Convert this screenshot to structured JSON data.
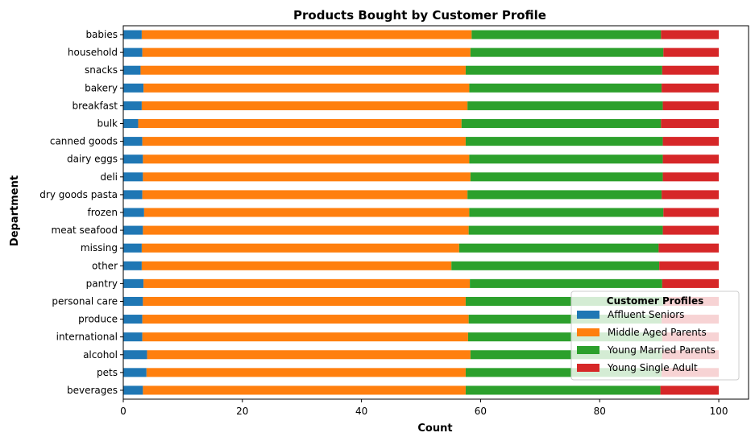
{
  "chart_data": {
    "type": "bar",
    "orientation": "horizontal",
    "stacked": true,
    "title": "Products Bought by Customer Profile",
    "xlabel": "Count",
    "ylabel": "Department",
    "xlim": [
      0,
      105
    ],
    "xticks": [
      0,
      20,
      40,
      60,
      80,
      100
    ],
    "grid": false,
    "legend": {
      "title": "Customer Profiles",
      "placement": "bottom-right"
    },
    "categories": [
      "babies",
      "household",
      "snacks",
      "bakery",
      "breakfast",
      "bulk",
      "canned goods",
      "dairy eggs",
      "deli",
      "dry goods pasta",
      "frozen",
      "meat seafood",
      "missing",
      "other",
      "pantry",
      "personal care",
      "produce",
      "international",
      "alcohol",
      "pets",
      "beverages"
    ],
    "series": [
      {
        "name": "Affluent Seniors",
        "color": "#1f77b4",
        "values": [
          3.1,
          3.2,
          2.9,
          3.4,
          3.1,
          2.5,
          3.2,
          3.3,
          3.3,
          3.2,
          3.5,
          3.3,
          3.1,
          3.1,
          3.4,
          3.3,
          3.2,
          3.2,
          4.0,
          3.9,
          3.3
        ]
      },
      {
        "name": "Middle Aged Parents",
        "color": "#ff7f0e",
        "values": [
          55.4,
          55.1,
          54.6,
          54.7,
          54.7,
          54.3,
          54.3,
          54.8,
          55.0,
          54.6,
          54.6,
          54.7,
          53.3,
          52.0,
          54.8,
          54.2,
          54.8,
          54.7,
          54.3,
          53.6,
          54.2
        ]
      },
      {
        "name": "Young Married Parents",
        "color": "#2ca02c",
        "values": [
          31.8,
          32.4,
          33.0,
          32.3,
          32.8,
          33.5,
          33.1,
          32.5,
          32.3,
          32.6,
          32.6,
          32.6,
          33.5,
          34.9,
          32.3,
          33.2,
          32.4,
          32.6,
          32.2,
          32.9,
          32.7
        ]
      },
      {
        "name": "Young Single Adult",
        "color": "#d62728",
        "values": [
          9.7,
          9.3,
          9.5,
          9.6,
          9.4,
          9.7,
          9.4,
          9.4,
          9.4,
          9.6,
          9.3,
          9.4,
          10.1,
          10.0,
          9.5,
          9.3,
          9.6,
          9.5,
          9.5,
          9.6,
          9.8
        ]
      }
    ]
  }
}
